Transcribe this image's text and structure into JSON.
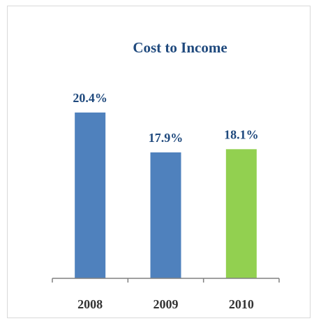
{
  "chart_data": {
    "type": "bar",
    "title": "Cost to Income",
    "categories": [
      "2008",
      "2009",
      "2010"
    ],
    "values": [
      20.4,
      17.9,
      18.1
    ],
    "value_labels": [
      "20.4%",
      "17.9%",
      "18.1%"
    ],
    "colors": [
      "#4f81bd",
      "#4f81bd",
      "#92d050"
    ],
    "ylim": [
      10,
      25
    ]
  }
}
